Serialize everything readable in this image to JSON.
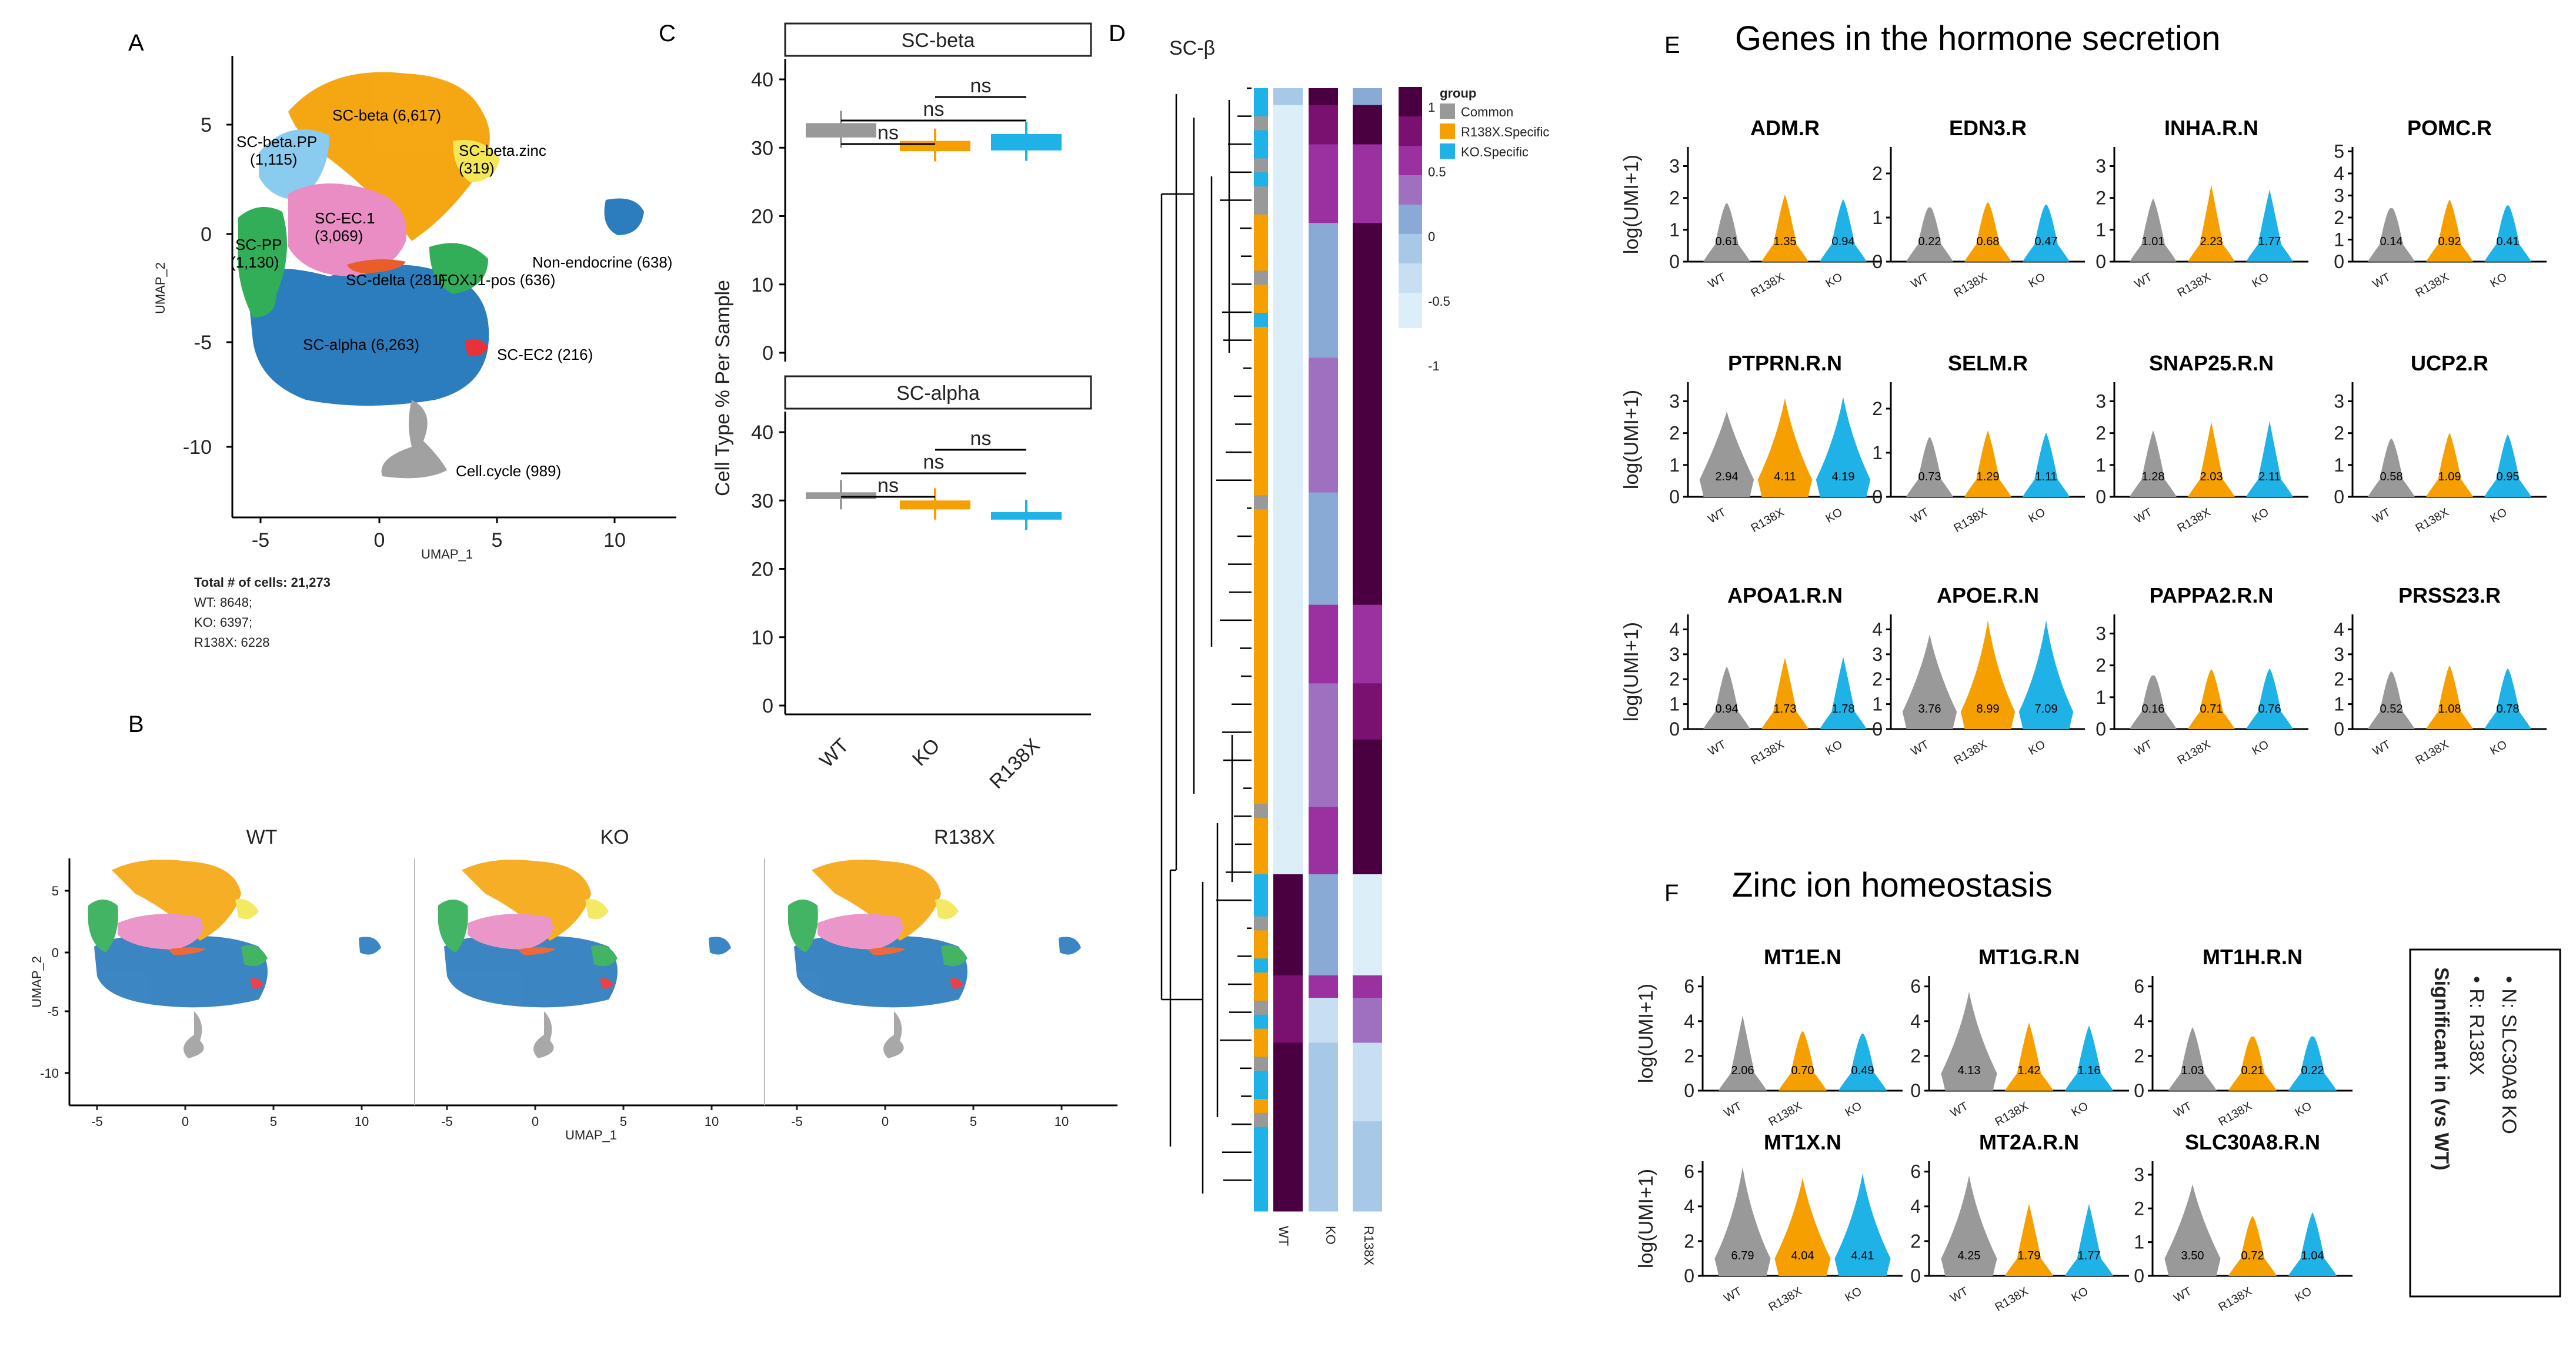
{
  "colors": {
    "common": "#999999",
    "r138x": "#f5a000",
    "ko": "#1fb2e6",
    "wt": "#999999",
    "pink": "#e884c0",
    "green": "#22a84a",
    "blue": "#1a72b8",
    "yellow": "#f2e64a",
    "sky": "#7fc8ee",
    "red": "#e8202a",
    "orange2": "#e8501a",
    "hm_dark": "#4a0040",
    "hm_mid": "#9b30a0",
    "hm_light": "#c8b8e0",
    "hm_pale": "#dceef8",
    "hm_blue": "#8aaad6"
  },
  "panelA": {
    "label": "A",
    "xaxis": "UMAP_1",
    "yaxis": "UMAP_2",
    "xticks": [
      "-5",
      "0",
      "5",
      "10"
    ],
    "yticks": [
      "5",
      "0",
      "-5",
      "-10"
    ],
    "clusters": [
      {
        "name": "SC-beta (6,617)"
      },
      {
        "name": "SC-beta.PP\n(1,115)"
      },
      {
        "name": "SC-beta.zinc\n(319)"
      },
      {
        "name": "SC-EC.1\n(3,069)"
      },
      {
        "name": "SC-PP\n(1,130)"
      },
      {
        "name": "SC-delta (281)"
      },
      {
        "name": "FOXJ1-pos (636)"
      },
      {
        "name": "Non-endocrine (638)"
      },
      {
        "name": "SC-alpha (6,263)"
      },
      {
        "name": "SC-EC2 (216)"
      },
      {
        "name": "Cell.cycle (989)"
      }
    ],
    "summary": [
      "Total # of cells: 21,273",
      "WT: 8648;",
      "KO: 6397;",
      "R138X: 6228"
    ]
  },
  "panelB": {
    "label": "B",
    "titles": [
      "WT",
      "KO",
      "R138X"
    ],
    "xaxis": "UMAP_1",
    "yaxis": "UMAP_2",
    "xticks": [
      "-5",
      "0",
      "5",
      "10"
    ],
    "yticks": [
      "5",
      "0",
      "-5",
      "-10"
    ]
  },
  "panelC": {
    "label": "C",
    "ylabel": "Cell Type % Per Sample",
    "facets": [
      "SC-beta",
      "SC-alpha"
    ],
    "yticks": [
      "40",
      "30",
      "20",
      "10",
      "0"
    ],
    "groups": [
      "WT",
      "KO",
      "R138X"
    ],
    "sig": "ns",
    "chart_data": [
      {
        "type": "box",
        "title": "SC-beta",
        "categories": [
          "WT",
          "KO",
          "R138X"
        ],
        "median": [
          32.5,
          30.2,
          30.8
        ],
        "q1": [
          31.5,
          29.5,
          29.6
        ],
        "q3": [
          33.6,
          31.0,
          32.0
        ],
        "ylim": [
          0,
          42
        ],
        "comparisons": [
          [
            "WT",
            "KO",
            "ns"
          ],
          [
            "WT",
            "R138X",
            "ns"
          ],
          [
            "KO",
            "R138X",
            "ns"
          ]
        ]
      },
      {
        "type": "box",
        "title": "SC-alpha",
        "categories": [
          "WT",
          "KO",
          "R138X"
        ],
        "median": [
          30.5,
          29.2,
          27.8
        ],
        "q1": [
          30.2,
          28.7,
          27.2
        ],
        "q3": [
          31.2,
          30.0,
          28.3
        ],
        "ylim": [
          0,
          42
        ],
        "comparisons": [
          [
            "WT",
            "KO",
            "ns"
          ],
          [
            "WT",
            "R138X",
            "ns"
          ],
          [
            "KO",
            "R138X",
            "ns"
          ]
        ]
      }
    ]
  },
  "panelD": {
    "label": "D",
    "title": "SC-β",
    "columns": [
      "WT",
      "KO",
      "R138X"
    ],
    "legend_title": "group",
    "legend_groups": [
      "Common",
      "R138X.Specific",
      "KO.Specific"
    ],
    "scale_ticks": [
      "1",
      "0.5",
      "0",
      "-0.5",
      "-1"
    ]
  },
  "panelE": {
    "label": "E",
    "title": "Genes in the hormone secretion",
    "ylabel": "log(UMI+1)",
    "xcats": [
      "WT",
      "R138X",
      "KO"
    ],
    "genes": [
      {
        "name": "ADM.R",
        "yticks": [
          "3",
          "2",
          "1",
          "0"
        ],
        "vals": [
          "0.61",
          "1.35",
          "0.94"
        ]
      },
      {
        "name": "EDN3.R",
        "yticks": [
          "2",
          "1",
          "0"
        ],
        "vals": [
          "0.22",
          "0.68",
          "0.47"
        ]
      },
      {
        "name": "INHA.R.N",
        "yticks": [
          "3",
          "2",
          "1",
          "0"
        ],
        "vals": [
          "1.01",
          "2.23",
          "1.77"
        ]
      },
      {
        "name": "POMC.R",
        "yticks": [
          "5",
          "4",
          "3",
          "2",
          "1",
          "0"
        ],
        "vals": [
          "0.14",
          "0.92",
          "0.41"
        ]
      },
      {
        "name": "PTPRN.R.N",
        "yticks": [
          "3",
          "2",
          "1",
          "0"
        ],
        "vals": [
          "2.94",
          "4.11",
          "4.19"
        ]
      },
      {
        "name": "SELM.R",
        "yticks": [
          "2",
          "1",
          "0"
        ],
        "vals": [
          "0.73",
          "1.29",
          "1.11"
        ]
      },
      {
        "name": "SNAP25.R.N",
        "yticks": [
          "3",
          "2",
          "1",
          "0"
        ],
        "vals": [
          "1.28",
          "2.03",
          "2.11"
        ]
      },
      {
        "name": "UCP2.R",
        "yticks": [
          "3",
          "2",
          "1",
          "0"
        ],
        "vals": [
          "0.58",
          "1.09",
          "0.95"
        ]
      },
      {
        "name": "APOA1.R.N",
        "yticks": [
          "4",
          "3",
          "2",
          "1",
          "0"
        ],
        "vals": [
          "0.94",
          "1.73",
          "1.78"
        ]
      },
      {
        "name": "APOE.R.N",
        "yticks": [
          "4",
          "3",
          "2",
          "1",
          "0"
        ],
        "vals": [
          "3.76",
          "8.99",
          "7.09"
        ]
      },
      {
        "name": "PAPPA2.R.N",
        "yticks": [
          "3",
          "2",
          "1",
          "0"
        ],
        "vals": [
          "0.16",
          "0.71",
          "0.76"
        ]
      },
      {
        "name": "PRSS23.R",
        "yticks": [
          "4",
          "3",
          "2",
          "1",
          "0"
        ],
        "vals": [
          "0.52",
          "1.08",
          "0.78"
        ]
      }
    ]
  },
  "panelF": {
    "label": "F",
    "title": "Zinc ion homeostasis",
    "ylabel": "log(UMI+1)",
    "xcats": [
      "WT",
      "R138X",
      "KO"
    ],
    "genes": [
      {
        "name": "MT1E.N",
        "yticks": [
          "6",
          "4",
          "2",
          "0"
        ],
        "vals": [
          "2.06",
          "0.70",
          "0.49"
        ]
      },
      {
        "name": "MT1G.R.N",
        "yticks": [
          "6",
          "4",
          "2",
          "0"
        ],
        "vals": [
          "4.13",
          "1.42",
          "1.16"
        ]
      },
      {
        "name": "MT1H.R.N",
        "yticks": [
          "6",
          "4",
          "2",
          "0"
        ],
        "vals": [
          "1.03",
          "0.21",
          "0.22"
        ]
      },
      {
        "name": "MT1X.N",
        "yticks": [
          "6",
          "4",
          "2",
          "0"
        ],
        "vals": [
          "6.79",
          "4.04",
          "4.41"
        ]
      },
      {
        "name": "MT2A.R.N",
        "yticks": [
          "6",
          "4",
          "2",
          "0"
        ],
        "vals": [
          "4.25",
          "1.79",
          "1.77"
        ]
      },
      {
        "name": "SLC30A8.R.N",
        "yticks": [
          "3",
          "2",
          "1",
          "0"
        ],
        "vals": [
          "3.50",
          "0.72",
          "1.04"
        ]
      }
    ],
    "legend_title": "Significant in (vs WT)",
    "legend_items": [
      "R: R138X",
      "N: SLC30A8 KO"
    ]
  }
}
